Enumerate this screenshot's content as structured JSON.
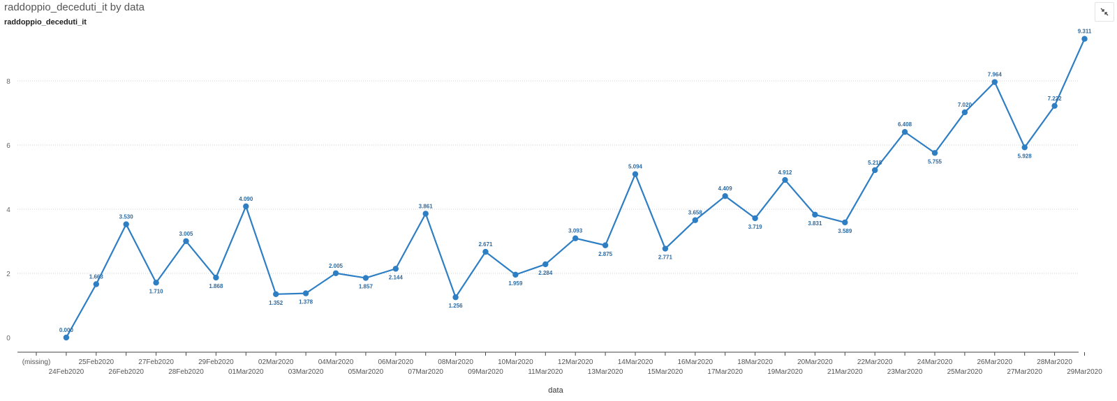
{
  "header": {
    "title": "raddoppio_deceduti_it by data",
    "subtitle": "raddoppio_deceduti_it",
    "collapse_icon": "collapse-arrows-icon"
  },
  "colors": {
    "series": "#2e7ec4",
    "label": "#2d6aa1",
    "grid": "#d0d0d0",
    "axis": "#444444"
  },
  "chart_data": {
    "type": "line",
    "title": "raddoppio_deceduti_it by data",
    "xlabel": "data",
    "ylabel": "",
    "ylim": [
      0,
      10
    ],
    "yticks": [
      0,
      2,
      4,
      6,
      8
    ],
    "grid": true,
    "categories": [
      "(missing)",
      "24Feb2020",
      "25Feb2020",
      "26Feb2020",
      "27Feb2020",
      "28Feb2020",
      "29Feb2020",
      "01Mar2020",
      "02Mar2020",
      "03Mar2020",
      "04Mar2020",
      "05Mar2020",
      "06Mar2020",
      "07Mar2020",
      "08Mar2020",
      "09Mar2020",
      "10Mar2020",
      "11Mar2020",
      "12Mar2020",
      "13Mar2020",
      "14Mar2020",
      "15Mar2020",
      "16Mar2020",
      "17Mar2020",
      "18Mar2020",
      "19Mar2020",
      "20Mar2020",
      "21Mar2020",
      "22Mar2020",
      "23Mar2020",
      "24Mar2020",
      "25Mar2020",
      "26Mar2020",
      "27Mar2020",
      "28Mar2020",
      "29Mar2020"
    ],
    "values": [
      null,
      0.0,
      1.663,
      3.53,
      1.71,
      3.005,
      1.868,
      4.09,
      1.352,
      1.378,
      2.005,
      1.857,
      2.144,
      3.861,
      1.256,
      2.671,
      1.959,
      2.284,
      3.093,
      2.875,
      5.094,
      2.771,
      3.658,
      4.409,
      3.719,
      4.912,
      3.831,
      3.589,
      5.218,
      6.408,
      5.755,
      7.02,
      7.964,
      5.928,
      7.222,
      9.311
    ],
    "value_labels": [
      "",
      "0.000",
      "1.663",
      "3.530",
      "1.710",
      "3.005",
      "1.868",
      "4.090",
      "1.352",
      "1.378",
      "2.005",
      "1.857",
      "2.144",
      "3.861",
      "1.256",
      "2.671",
      "1.959",
      "2.284",
      "3.093",
      "2.875",
      "5.094",
      "2.771",
      "3.658",
      "4.409",
      "3.719",
      "4.912",
      "3.831",
      "3.589",
      "5.218",
      "6.408",
      "5.755",
      "7.020",
      "7.964",
      "5.928",
      "7.222",
      "9.311"
    ],
    "label_positions": [
      "",
      "above",
      "above",
      "above",
      "below",
      "above",
      "below",
      "above",
      "below",
      "below",
      "above",
      "below",
      "below",
      "above",
      "below",
      "above",
      "below",
      "below",
      "above",
      "below",
      "above",
      "below",
      "above",
      "above",
      "below",
      "above",
      "below",
      "below",
      "above",
      "above",
      "below",
      "above",
      "above",
      "below",
      "above",
      "above"
    ]
  }
}
